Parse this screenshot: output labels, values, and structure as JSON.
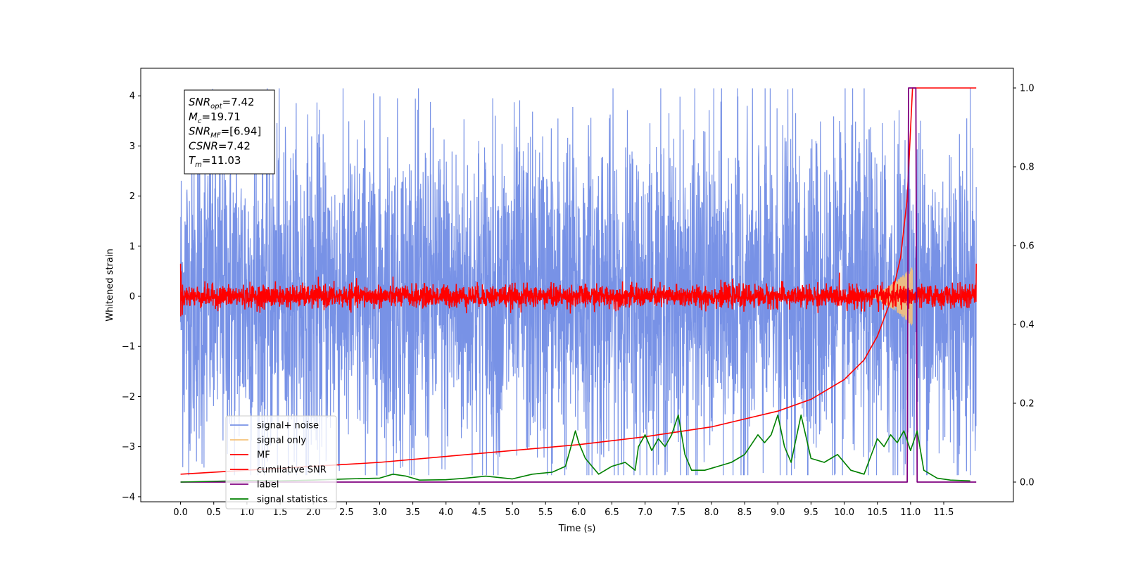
{
  "chart_data": {
    "type": "line",
    "xlabel": "Time (s)",
    "ylabel": "Whitened strain",
    "xlim": [
      -0.6,
      12.55
    ],
    "ylim": [
      -4.1,
      4.55
    ],
    "ylim_right": [
      -0.05,
      1.05
    ],
    "xticks": [
      0.0,
      0.5,
      1.0,
      1.5,
      2.0,
      2.5,
      3.0,
      3.5,
      4.0,
      4.5,
      5.0,
      5.5,
      6.0,
      6.5,
      7.0,
      7.5,
      8.0,
      8.5,
      9.0,
      9.5,
      10.0,
      10.5,
      11.0,
      11.5
    ],
    "xtick_labels": [
      "0.0",
      "0.5",
      "1.0",
      "1.5",
      "2.0",
      "2.5",
      "3.0",
      "3.5",
      "4.0",
      "4.5",
      "5.0",
      "5.5",
      "6.0",
      "6.5",
      "7.0",
      "7.5",
      "8.0",
      "8.5",
      "9.0",
      "9.5",
      "10.0",
      "10.5",
      "11.0",
      "11.5"
    ],
    "yticks": [
      -4,
      -3,
      -2,
      -1,
      0,
      1,
      2,
      3,
      4
    ],
    "ytick_labels": [
      "−4",
      "−3",
      "−2",
      "−1",
      "0",
      "1",
      "2",
      "3",
      "4"
    ],
    "yticks_right": [
      0.0,
      0.2,
      0.4,
      0.6,
      0.8,
      1.0
    ],
    "ytick_right_labels": [
      "0.0",
      "0.2",
      "0.4",
      "0.6",
      "0.8",
      "1.0"
    ],
    "grid": false,
    "legend_position": "lower-left",
    "annotation": {
      "lines": [
        {
          "base": "SNR",
          "sub": "opt",
          "value": "=7.42"
        },
        {
          "base": "M",
          "sub": "c",
          "value": "=19.71"
        },
        {
          "base": "SNR",
          "sub": "MF",
          "value": "=[6.94]"
        },
        {
          "base": "CSNR",
          "sub": "",
          "value": "=7.42"
        },
        {
          "base": "T",
          "sub": "m",
          "value": "=11.03"
        }
      ]
    },
    "series": [
      {
        "name": "signal+ noise",
        "color": "#7892e6",
        "axis": "left",
        "kind": "noise",
        "t_range": [
          0.0,
          11.99
        ],
        "amplitude_typical": 2.3,
        "amplitude_peak": 4.15
      },
      {
        "name": "signal only",
        "color": "#f5c27a",
        "axis": "left",
        "kind": "chirp",
        "t_range": [
          10.3,
          11.03
        ],
        "amplitude_peak": 0.6
      },
      {
        "name": "MF",
        "color": "#ff0000",
        "axis": "left",
        "kind": "noise",
        "t_range": [
          0.0,
          11.99
        ],
        "amplitude_typical": 0.2,
        "amplitude_peak": 0.65
      },
      {
        "name": "cumilative SNR",
        "color": "#ff0000",
        "axis": "right",
        "x": [
          0.0,
          1.0,
          2.0,
          3.0,
          4.0,
          5.0,
          6.0,
          7.0,
          8.0,
          8.5,
          9.0,
          9.5,
          10.0,
          10.3,
          10.5,
          10.7,
          10.85,
          10.95,
          11.03,
          11.99
        ],
        "y": [
          0.02,
          0.03,
          0.04,
          0.05,
          0.065,
          0.08,
          0.095,
          0.115,
          0.14,
          0.16,
          0.18,
          0.21,
          0.26,
          0.31,
          0.37,
          0.46,
          0.57,
          0.72,
          1.0,
          1.0
        ]
      },
      {
        "name": "label",
        "color": "#800080",
        "axis": "right",
        "x": [
          0.0,
          10.95,
          10.97,
          11.08,
          11.1,
          11.99
        ],
        "y": [
          0.0,
          0.0,
          1.0,
          1.0,
          0.0,
          0.0
        ]
      },
      {
        "name": "signal statistics",
        "color": "#008000",
        "axis": "right",
        "x": [
          0.0,
          0.5,
          1.0,
          1.5,
          2.0,
          2.5,
          3.0,
          3.2,
          3.4,
          3.6,
          4.0,
          4.3,
          4.6,
          5.0,
          5.3,
          5.6,
          5.8,
          5.95,
          6.0,
          6.1,
          6.3,
          6.5,
          6.7,
          6.85,
          6.9,
          7.0,
          7.1,
          7.2,
          7.3,
          7.4,
          7.5,
          7.6,
          7.7,
          7.9,
          8.1,
          8.3,
          8.5,
          8.7,
          8.8,
          8.9,
          9.0,
          9.1,
          9.2,
          9.3,
          9.35,
          9.5,
          9.7,
          9.9,
          10.1,
          10.3,
          10.5,
          10.6,
          10.7,
          10.8,
          10.9,
          11.0,
          11.1,
          11.2,
          11.4,
          11.6,
          11.9
        ],
        "y": [
          0.0,
          0.002,
          0.004,
          0.003,
          0.005,
          0.008,
          0.01,
          0.02,
          0.015,
          0.005,
          0.006,
          0.01,
          0.015,
          0.008,
          0.02,
          0.025,
          0.04,
          0.13,
          0.1,
          0.06,
          0.02,
          0.04,
          0.05,
          0.03,
          0.09,
          0.12,
          0.08,
          0.11,
          0.09,
          0.12,
          0.17,
          0.07,
          0.03,
          0.03,
          0.04,
          0.05,
          0.07,
          0.12,
          0.1,
          0.12,
          0.17,
          0.09,
          0.05,
          0.13,
          0.17,
          0.06,
          0.05,
          0.07,
          0.03,
          0.02,
          0.11,
          0.09,
          0.12,
          0.1,
          0.13,
          0.08,
          0.13,
          0.03,
          0.01,
          0.005,
          0.003
        ]
      }
    ]
  }
}
